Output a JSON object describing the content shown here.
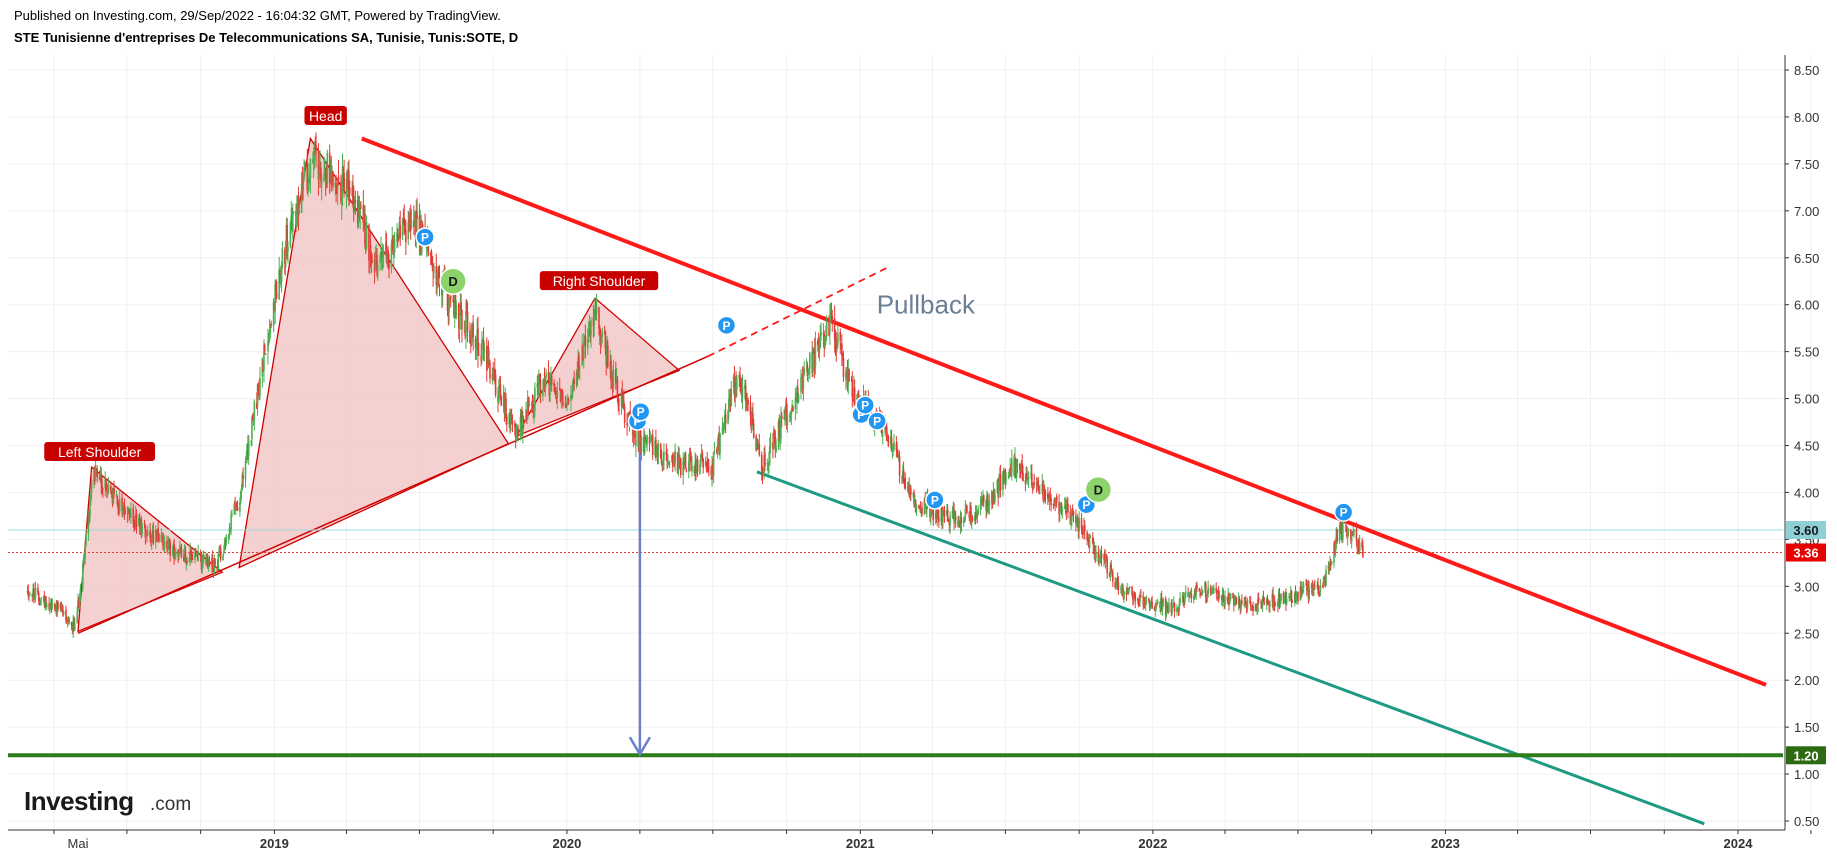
{
  "header": {
    "published": "Published on Investing.com, 29/Sep/2022 - 16:04:32 GMT, Powered by TradingView.",
    "title": "STE Tunisienne d'entreprises De Telecommunications SA, Tunisie, Tunis:SOTE, D"
  },
  "logo": {
    "main": "Investing",
    "suffix": ".com"
  },
  "colors": {
    "candle_up": "#4caf50",
    "candle_down": "#e53935",
    "trendline": "#ff1a1a",
    "support_channel": "#1e9a82",
    "target_line": "#2e7d1a",
    "arrow": "#6a7fcf",
    "pattern_fill": "#f2c4c4",
    "pattern_stroke": "#d10000"
  },
  "chart_data": {
    "type": "candlestick",
    "instrument": "Tunis:SOTE",
    "interval": "D",
    "ylim": [
      0.42,
      8.55
    ],
    "y_ticks": [
      "8.50",
      "8.00",
      "7.50",
      "7.00",
      "6.50",
      "6.00",
      "5.50",
      "5.00",
      "4.50",
      "4.00",
      "3.50",
      "3.00",
      "2.50",
      "2.00",
      "1.50",
      "1.00",
      "0.50"
    ],
    "x_labels": [
      {
        "label": "Mai",
        "date": "2018-05-01"
      },
      {
        "label": "2019",
        "date": "2019-01-01"
      },
      {
        "label": "2020",
        "date": "2020-01-01"
      },
      {
        "label": "2021",
        "date": "2021-01-01"
      },
      {
        "label": "2022",
        "date": "2022-01-01"
      },
      {
        "label": "2023",
        "date": "2023-01-01"
      },
      {
        "label": "2024",
        "date": "2024-01-01"
      }
    ],
    "price_path": [
      [
        "2018-02-27",
        2.95
      ],
      [
        "2018-04-10",
        2.75
      ],
      [
        "2018-04-28",
        2.55
      ],
      [
        "2018-05-20",
        4.2
      ],
      [
        "2018-07-10",
        3.7
      ],
      [
        "2018-08-25",
        3.4
      ],
      [
        "2018-10-20",
        3.2
      ],
      [
        "2018-11-20",
        4.0
      ],
      [
        "2019-01-10",
        6.5
      ],
      [
        "2019-02-18",
        7.6
      ],
      [
        "2019-04-05",
        7.2
      ],
      [
        "2019-05-10",
        6.4
      ],
      [
        "2019-06-25",
        6.9
      ],
      [
        "2019-08-10",
        6.0
      ],
      [
        "2019-09-20",
        5.5
      ],
      [
        "2019-10-28",
        4.6
      ],
      [
        "2019-12-01",
        5.2
      ],
      [
        "2020-01-05",
        5.0
      ],
      [
        "2020-02-05",
        5.9
      ],
      [
        "2020-03-10",
        4.9
      ],
      [
        "2020-03-28",
        4.6
      ],
      [
        "2020-05-20",
        4.3
      ],
      [
        "2020-07-01",
        4.3
      ],
      [
        "2020-08-01",
        5.3
      ],
      [
        "2020-09-01",
        4.3
      ],
      [
        "2020-10-10",
        5.0
      ],
      [
        "2020-11-25",
        5.8
      ],
      [
        "2020-12-20",
        5.1
      ],
      [
        "2021-01-30",
        4.7
      ],
      [
        "2021-03-10",
        3.9
      ],
      [
        "2021-05-01",
        3.7
      ],
      [
        "2021-06-10",
        3.9
      ],
      [
        "2021-07-10",
        4.3
      ],
      [
        "2021-08-20",
        4.0
      ],
      [
        "2021-09-25",
        3.7
      ],
      [
        "2021-10-28",
        3.3
      ],
      [
        "2021-11-25",
        2.95
      ],
      [
        "2022-01-25",
        2.75
      ],
      [
        "2022-02-25",
        3.0
      ],
      [
        "2022-04-01",
        2.85
      ],
      [
        "2022-05-10",
        2.8
      ],
      [
        "2022-06-25",
        2.9
      ],
      [
        "2022-08-01",
        3.0
      ],
      [
        "2022-08-20",
        3.6
      ],
      [
        "2022-09-05",
        3.55
      ],
      [
        "2022-09-20",
        3.36
      ]
    ],
    "current_price": 3.36,
    "price_labels": [
      {
        "value": 3.6,
        "text": "3.60"
      },
      {
        "value": 3.36,
        "text": "3.36"
      },
      {
        "value": 1.2,
        "text": "1.20"
      }
    ],
    "pattern_labels": {
      "left_shoulder": "Left Shoulder",
      "head": "Head",
      "right_shoulder": "Right Shoulder",
      "pullback": "Pullback"
    },
    "pattern_labels_pos": {
      "left_shoulder": [
        "2018-05-28",
        4.42
      ],
      "head": [
        "2019-03-06",
        8.0
      ],
      "right_shoulder": [
        "2020-02-10",
        6.24
      ],
      "pullback": [
        "2020-12-20",
        6.0
      ]
    },
    "head_and_shoulders": [
      {
        "points": [
          [
            "2018-05-01",
            2.52
          ],
          [
            "2018-05-18",
            4.27
          ],
          [
            "2018-10-28",
            3.15
          ]
        ]
      },
      {
        "points": [
          [
            "2018-11-18",
            3.2
          ],
          [
            "2019-02-15",
            7.77
          ],
          [
            "2019-10-20",
            4.52
          ]
        ]
      },
      {
        "points": [
          [
            "2019-10-30",
            4.6
          ],
          [
            "2020-02-05",
            6.07
          ],
          [
            "2020-05-20",
            5.3
          ]
        ]
      }
    ],
    "neckline": [
      [
        "2018-05-01",
        2.5
      ],
      [
        "2020-06-25",
        5.45
      ]
    ],
    "neckline_extension": [
      [
        "2020-06-25",
        5.45
      ],
      [
        "2021-02-05",
        6.4
      ]
    ],
    "resistance_line": [
      [
        "2019-04-20",
        7.77
      ],
      [
        "2024-02-05",
        1.95
      ]
    ],
    "support_channel": [
      [
        "2020-08-25",
        4.22
      ],
      [
        "2023-11-20",
        0.47
      ]
    ],
    "target_level": 1.2,
    "current_level_line": 3.6,
    "target_arrow": {
      "date": "2020-04-01",
      "from": 4.7,
      "to": 1.2
    },
    "dividend_markers": [
      {
        "date": "2019-08-12",
        "price": 6.25,
        "text": "D"
      },
      {
        "date": "2021-10-25",
        "price": 4.03,
        "text": "D"
      }
    ],
    "split_markers": [
      {
        "date": "2019-07-08",
        "price": 6.72,
        "text": "P"
      },
      {
        "date": "2020-03-29",
        "price": 4.76,
        "text": "P"
      },
      {
        "date": "2020-04-02",
        "price": 4.86,
        "text": "P"
      },
      {
        "date": "2020-07-18",
        "price": 5.78,
        "text": "P"
      },
      {
        "date": "2021-01-02",
        "price": 4.83,
        "text": "P"
      },
      {
        "date": "2021-01-07",
        "price": 4.93,
        "text": "P"
      },
      {
        "date": "2021-01-22",
        "price": 4.76,
        "text": "P"
      },
      {
        "date": "2021-04-04",
        "price": 3.92,
        "text": "P"
      },
      {
        "date": "2021-10-10",
        "price": 3.87,
        "text": "P"
      },
      {
        "date": "2022-08-27",
        "price": 3.79,
        "text": "P"
      }
    ]
  }
}
